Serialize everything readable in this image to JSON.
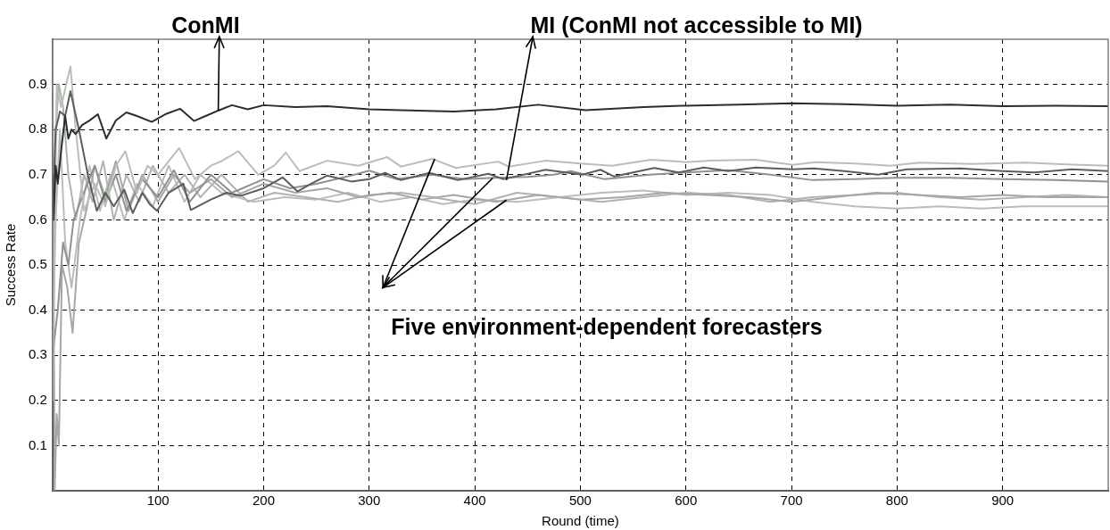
{
  "chart_data": {
    "type": "line",
    "xlabel": "Round (time)",
    "ylabel": "Success Rate",
    "xlim": [
      0,
      1000
    ],
    "xticks": [
      100,
      200,
      300,
      400,
      500,
      600,
      700,
      800,
      900
    ],
    "ylim": [
      0,
      1
    ],
    "yticks": [
      0.1,
      0.2,
      0.3,
      0.4,
      0.5,
      0.6,
      0.7,
      0.8,
      0.9
    ],
    "grid": true,
    "line_style": "solid",
    "marker": "none",
    "annotations": [
      {
        "text": "ConMI",
        "x": 157,
        "y": 0.842
      },
      {
        "text": "MI (ConMI not accessible to MI)",
        "x": 430,
        "y": 0.688
      },
      {
        "text": "Five environment-dependent forecasters",
        "x": 362,
        "y": 0.735
      }
    ],
    "series": [
      {
        "color": "#28302a",
        "x": [
          0,
          1,
          3,
          5,
          8,
          12,
          15,
          18,
          22,
          28,
          35,
          43,
          51,
          60,
          70,
          80,
          94,
          108,
          121,
          134,
          145,
          157,
          170,
          185,
          200,
          230,
          260,
          300,
          330,
          380,
          420,
          460,
          505,
          560,
          600,
          650,
          700,
          750,
          800,
          850,
          900,
          950,
          1000
        ],
        "values": [
          0.7,
          0.6,
          0.72,
          0.68,
          0.75,
          0.83,
          0.78,
          0.8,
          0.79,
          0.81,
          0.82,
          0.834,
          0.78,
          0.82,
          0.838,
          0.83,
          0.817,
          0.835,
          0.846,
          0.819,
          0.83,
          0.842,
          0.854,
          0.845,
          0.854,
          0.85,
          0.852,
          0.845,
          0.843,
          0.84,
          0.845,
          0.855,
          0.843,
          0.85,
          0.853,
          0.855,
          0.858,
          0.856,
          0.853,
          0.855,
          0.852,
          0.853,
          0.852
        ]
      },
      {
        "color": "#5c5e5c",
        "x": [
          0,
          3,
          7,
          12,
          17,
          25,
          34,
          42,
          50,
          58,
          68,
          76,
          85,
          92,
          99,
          110,
          124,
          131,
          150,
          165,
          178,
          200,
          218,
          232,
          245,
          260,
          283,
          300,
          315,
          330,
          357,
          384,
          413,
          427,
          467,
          502,
          519,
          532,
          570,
          593,
          617,
          640,
          666,
          701,
          721,
          750,
          782,
          809,
          860,
          900,
          930,
          966,
          1000
        ],
        "values": [
          0.6,
          0.8,
          0.84,
          0.83,
          0.885,
          0.8,
          0.694,
          0.62,
          0.66,
          0.63,
          0.667,
          0.615,
          0.66,
          0.635,
          0.62,
          0.66,
          0.68,
          0.622,
          0.645,
          0.66,
          0.653,
          0.67,
          0.694,
          0.663,
          0.68,
          0.698,
          0.685,
          0.69,
          0.704,
          0.688,
          0.704,
          0.688,
          0.702,
          0.69,
          0.711,
          0.7,
          0.711,
          0.696,
          0.715,
          0.705,
          0.716,
          0.708,
          0.716,
          0.712,
          0.714,
          0.708,
          0.7,
          0.712,
          0.714,
          0.708,
          0.705,
          0.712,
          0.708
        ]
      },
      {
        "color": "#b7c0b5",
        "x": [
          0,
          4,
          8,
          13,
          17,
          22,
          30,
          40,
          50,
          60,
          69,
          80,
          90,
          100,
          110,
          120,
          135,
          150,
          160,
          176,
          195,
          210,
          221,
          234,
          260,
          290,
          317,
          330,
          360,
          382,
          422,
          432,
          467,
          500,
          530,
          567,
          600,
          623,
          666,
          701,
          723,
          760,
          794,
          822,
          870,
          922,
          960,
          1000
        ],
        "values": [
          0.2,
          0.9,
          0.85,
          0.9,
          0.94,
          0.8,
          0.62,
          0.68,
          0.63,
          0.72,
          0.752,
          0.66,
          0.72,
          0.7,
          0.73,
          0.759,
          0.69,
          0.72,
          0.73,
          0.752,
          0.7,
          0.72,
          0.749,
          0.708,
          0.731,
          0.72,
          0.739,
          0.718,
          0.735,
          0.715,
          0.729,
          0.718,
          0.731,
          0.725,
          0.72,
          0.733,
          0.728,
          0.731,
          0.733,
          0.722,
          0.728,
          0.725,
          0.72,
          0.727,
          0.724,
          0.727,
          0.723,
          0.72
        ]
      },
      {
        "color": "#8e948d",
        "x": [
          0,
          5,
          10,
          15,
          20,
          28,
          40,
          50,
          60,
          70,
          85,
          100,
          115,
          130,
          150,
          170,
          200,
          225,
          250,
          283,
          300,
          326,
          360,
          390,
          420,
          450,
          475,
          491,
          523,
          566,
          600,
          640,
          680,
          720,
          760,
          799,
          850,
          900,
          950,
          1000
        ],
        "values": [
          0.3,
          0.4,
          0.55,
          0.5,
          0.6,
          0.65,
          0.72,
          0.64,
          0.7,
          0.62,
          0.69,
          0.65,
          0.71,
          0.64,
          0.7,
          0.66,
          0.69,
          0.67,
          0.68,
          0.698,
          0.709,
          0.69,
          0.7,
          0.69,
          0.693,
          0.695,
          0.7,
          0.708,
          0.69,
          0.7,
          0.705,
          0.71,
          0.7,
          0.688,
          0.69,
          0.693,
          0.693,
          0.69,
          0.688,
          0.685
        ]
      },
      {
        "color": "#a4a8a3",
        "x": [
          0,
          2,
          4,
          6,
          9,
          14,
          19,
          25,
          32,
          40,
          50,
          60,
          72,
          85,
          100,
          115,
          130,
          150,
          170,
          200,
          230,
          260,
          290,
          320,
          350,
          380,
          420,
          460,
          500,
          540,
          580,
          620,
          660,
          700,
          740,
          780,
          820,
          860,
          900,
          940,
          1000
        ],
        "values": [
          1,
          0,
          0.17,
          0.1,
          0.5,
          0.45,
          0.35,
          0.55,
          0.62,
          0.72,
          0.65,
          0.73,
          0.62,
          0.7,
          0.64,
          0.7,
          0.66,
          0.69,
          0.65,
          0.68,
          0.66,
          0.67,
          0.65,
          0.66,
          0.645,
          0.655,
          0.64,
          0.655,
          0.645,
          0.65,
          0.66,
          0.655,
          0.65,
          0.64,
          0.65,
          0.66,
          0.655,
          0.65,
          0.655,
          0.65,
          0.65
        ]
      },
      {
        "color": "#b0b2b0",
        "x": [
          0,
          3,
          6,
          10,
          15,
          22,
          30,
          38,
          48,
          58,
          70,
          82,
          95,
          110,
          125,
          140,
          160,
          185,
          210,
          240,
          270,
          300,
          330,
          360,
          400,
          440,
          480,
          520,
          560,
          600,
          640,
          680,
          720,
          760,
          800,
          840,
          880,
          920,
          960,
          1000
        ],
        "values": [
          0.5,
          0.8,
          0.9,
          0.85,
          0.7,
          0.6,
          0.7,
          0.64,
          0.73,
          0.6,
          0.7,
          0.64,
          0.72,
          0.66,
          0.7,
          0.65,
          0.7,
          0.64,
          0.66,
          0.65,
          0.64,
          0.655,
          0.66,
          0.65,
          0.635,
          0.66,
          0.65,
          0.64,
          0.65,
          0.66,
          0.655,
          0.64,
          0.65,
          0.655,
          0.66,
          0.65,
          0.645,
          0.65,
          0.655,
          0.65
        ]
      },
      {
        "color": "#bcbcbc",
        "x": [
          0,
          3,
          7,
          12,
          18,
          26,
          35,
          45,
          55,
          68,
          80,
          95,
          110,
          125,
          140,
          160,
          190,
          220,
          250,
          280,
          310,
          340,
          370,
          400,
          440,
          480,
          520,
          560,
          600,
          640,
          680,
          720,
          760,
          800,
          840,
          880,
          920,
          960,
          1000
        ],
        "values": [
          0.3,
          0.6,
          0.8,
          0.55,
          0.45,
          0.6,
          0.72,
          0.62,
          0.7,
          0.6,
          0.68,
          0.63,
          0.72,
          0.64,
          0.7,
          0.66,
          0.64,
          0.65,
          0.645,
          0.66,
          0.64,
          0.65,
          0.635,
          0.645,
          0.64,
          0.65,
          0.66,
          0.665,
          0.655,
          0.66,
          0.655,
          0.64,
          0.63,
          0.625,
          0.63,
          0.625,
          0.63,
          0.63,
          0.63
        ]
      }
    ]
  }
}
